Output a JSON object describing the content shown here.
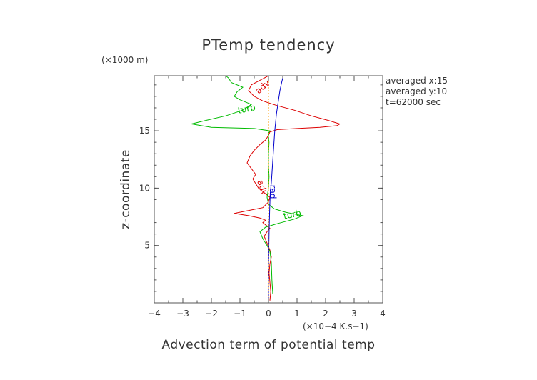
{
  "chart_data": {
    "type": "line",
    "title": "PTemp tendency",
    "xlabel": "Advection term of potential temp",
    "ylabel": "z-coordinate",
    "x_unit": "(×10−4 K.s−1)",
    "y_unit": "(×1000 m)",
    "xlim": [
      -4,
      4
    ],
    "ylim": [
      0,
      19.8
    ],
    "xticks": [
      "−4",
      "−3",
      "−2",
      "−1",
      "0",
      "1",
      "2",
      "3",
      "4"
    ],
    "yticks": [
      "5",
      "10",
      "15"
    ],
    "grid": false,
    "annotations": [
      "averaged  x:15",
      "averaged  y:10",
      "t=62000 sec"
    ],
    "series": [
      {
        "name": "adv",
        "color": "#dd0000",
        "x": [
          0.05,
          0.08,
          0.05,
          0.02,
          0.05,
          0.1,
          0.05,
          -0.05,
          -0.15,
          -0.05,
          0.05,
          -0.1,
          -0.2,
          -0.1,
          -0.3,
          -0.7,
          -1.2,
          -0.8,
          -0.2,
          0.0,
          0.05,
          -0.15,
          -0.35,
          -0.45,
          -0.55,
          -0.45,
          -0.6,
          -0.75,
          -0.65,
          -0.5,
          -0.3,
          -0.1,
          0.0,
          0.05,
          0.3,
          1.0,
          1.8,
          2.4,
          2.5,
          2.1,
          1.5,
          0.9,
          0.3,
          -0.2,
          -0.5,
          -0.7,
          -0.6,
          -0.3,
          0.0
        ],
        "y": [
          0.2,
          1.0,
          1.8,
          2.6,
          3.4,
          4.0,
          4.6,
          5.2,
          5.8,
          6.2,
          6.5,
          6.8,
          7.0,
          7.2,
          7.4,
          7.6,
          7.8,
          8.0,
          8.3,
          8.8,
          9.2,
          9.6,
          10.0,
          10.4,
          10.8,
          11.2,
          11.7,
          12.2,
          12.8,
          13.3,
          13.8,
          14.2,
          14.6,
          14.9,
          15.1,
          15.2,
          15.3,
          15.45,
          15.6,
          15.9,
          16.3,
          16.8,
          17.2,
          17.6,
          18.0,
          18.5,
          19.0,
          19.4,
          19.8
        ]
      },
      {
        "name": "turb",
        "color": "#00bb00",
        "x": [
          0.15,
          0.12,
          0.1,
          0.05,
          -0.05,
          -0.2,
          -0.3,
          -0.1,
          0.3,
          0.9,
          1.2,
          0.6,
          0.2,
          0.0,
          -0.05,
          0.0,
          0.02,
          0.0,
          0.0,
          0.02,
          0.0,
          0.0,
          0.05,
          -0.5,
          -2.0,
          -2.7,
          -2.2,
          -1.5,
          -0.9,
          -0.6,
          -1.0,
          -1.2,
          -1.1,
          -0.9,
          -1.3,
          -1.4,
          -1.5
        ],
        "y": [
          0.8,
          2.0,
          3.5,
          4.5,
          5.0,
          5.6,
          6.2,
          6.6,
          6.9,
          7.3,
          7.6,
          7.9,
          8.2,
          8.6,
          9.2,
          10.0,
          11.0,
          12.0,
          13.0,
          14.0,
          14.5,
          14.8,
          15.0,
          15.2,
          15.3,
          15.6,
          15.9,
          16.3,
          16.8,
          17.3,
          17.7,
          18.0,
          18.4,
          18.8,
          19.2,
          19.6,
          19.8
        ]
      },
      {
        "name": "rad",
        "color": "#0000cc",
        "x": [
          0.0,
          0.0,
          0.02,
          0.04,
          0.06,
          0.1,
          0.14,
          0.18,
          0.22,
          0.28,
          0.34,
          0.4,
          0.46,
          0.52
        ],
        "y": [
          0.0,
          3.0,
          6.0,
          8.0,
          9.5,
          10.5,
          12.0,
          13.5,
          15.0,
          16.5,
          17.5,
          18.5,
          19.2,
          19.8
        ]
      },
      {
        "name": "",
        "color": "#ff9900",
        "dashed": true,
        "x": [
          0.0,
          0.0,
          0.0,
          0.0,
          0.0,
          0.0
        ],
        "y": [
          0.0,
          4.0,
          8.0,
          12.0,
          16.0,
          19.8
        ]
      }
    ]
  }
}
